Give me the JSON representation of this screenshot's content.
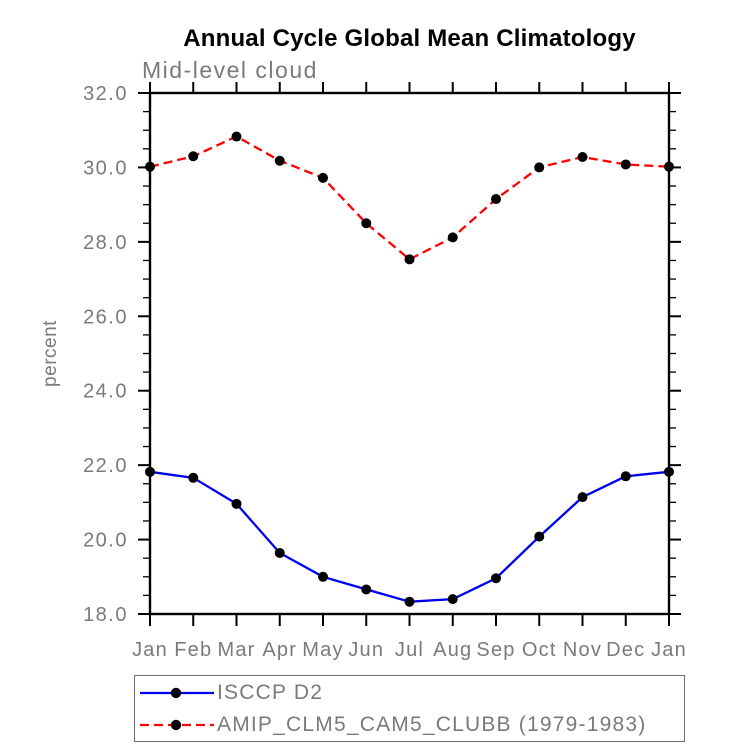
{
  "chart_data": {
    "type": "line",
    "title": "Annual Cycle Global Mean Climatology",
    "subtitle": "Mid-level cloud",
    "ylabel": "percent",
    "xlabel": "",
    "categories": [
      "Jan",
      "Feb",
      "Mar",
      "Apr",
      "May",
      "Jun",
      "Jul",
      "Aug",
      "Sep",
      "Oct",
      "Nov",
      "Dec",
      "Jan"
    ],
    "ylim": [
      18.0,
      32.0
    ],
    "y_major_step": 2.0,
    "y_minor_step": 0.5,
    "y_tick_decimals": 1,
    "grid": false,
    "legend_position": "bottom-left",
    "axis_color": "#000000",
    "label_color": "#7a7a7a",
    "marker": "filled-circle",
    "series": [
      {
        "name": "ISCCP D2",
        "color": "#0000ee",
        "line_style": "solid",
        "marker_color": "#000000",
        "values": [
          21.82,
          21.66,
          20.96,
          19.64,
          19.0,
          18.66,
          18.33,
          18.4,
          18.96,
          20.08,
          21.14,
          21.7,
          21.82
        ]
      },
      {
        "name": "AMIP_CLM5_CAM5_CLUBB (1979-1983)",
        "color": "#ff0000",
        "line_style": "dashed",
        "marker_color": "#000000",
        "values": [
          30.02,
          30.3,
          30.83,
          30.18,
          29.72,
          28.5,
          27.53,
          28.12,
          29.15,
          30.0,
          30.28,
          30.08,
          30.02
        ]
      }
    ]
  }
}
